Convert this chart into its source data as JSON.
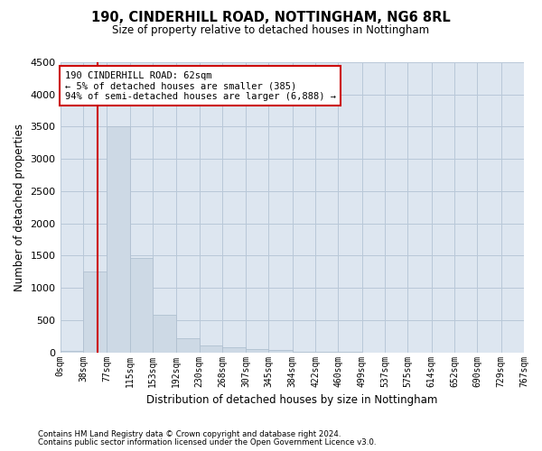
{
  "title": "190, CINDERHILL ROAD, NOTTINGHAM, NG6 8RL",
  "subtitle": "Size of property relative to detached houses in Nottingham",
  "xlabel": "Distribution of detached houses by size in Nottingham",
  "ylabel": "Number of detached properties",
  "bar_color": "#cdd9e5",
  "bar_edge_color": "#b0c0d0",
  "grid_color": "#b8c8d8",
  "background_color": "#dde6f0",
  "annotation_box_facecolor": "#ffffff",
  "annotation_border_color": "#cc0000",
  "vline_color": "#cc0000",
  "property_size": 62,
  "annotation_line1": "190 CINDERHILL ROAD: 62sqm",
  "annotation_line2": "← 5% of detached houses are smaller (385)",
  "annotation_line3": "94% of semi-detached houses are larger (6,888) →",
  "footer_line1": "Contains HM Land Registry data © Crown copyright and database right 2024.",
  "footer_line2": "Contains public sector information licensed under the Open Government Licence v3.0.",
  "bin_edges": [
    0,
    38,
    77,
    115,
    153,
    192,
    230,
    268,
    307,
    345,
    384,
    422,
    460,
    499,
    537,
    575,
    614,
    652,
    690,
    729,
    767
  ],
  "bin_labels": [
    "0sqm",
    "38sqm",
    "77sqm",
    "115sqm",
    "153sqm",
    "192sqm",
    "230sqm",
    "268sqm",
    "307sqm",
    "345sqm",
    "384sqm",
    "422sqm",
    "460sqm",
    "499sqm",
    "537sqm",
    "575sqm",
    "614sqm",
    "652sqm",
    "690sqm",
    "729sqm",
    "767sqm"
  ],
  "bar_heights": [
    25,
    1250,
    3500,
    1470,
    580,
    220,
    110,
    75,
    50,
    30,
    15,
    10,
    5,
    0,
    0,
    0,
    0,
    0,
    0,
    0
  ],
  "ylim": [
    0,
    4500
  ],
  "yticks": [
    0,
    500,
    1000,
    1500,
    2000,
    2500,
    3000,
    3500,
    4000,
    4500
  ]
}
